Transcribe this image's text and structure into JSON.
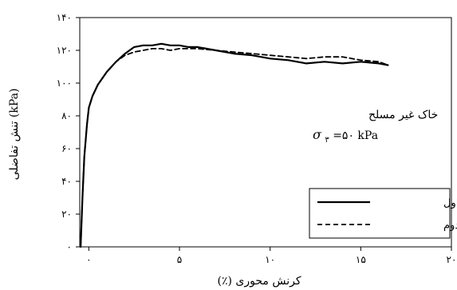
{
  "chart_data": {
    "type": "line",
    "title": "",
    "xlabel": "کرنش محوری (٪)",
    "ylabel": "تنش تفاضلی (kPa)",
    "xlim": [
      -0.5,
      20
    ],
    "ylim": [
      0,
      140
    ],
    "x_ticks": [
      0,
      5,
      10,
      15,
      20
    ],
    "x_tick_labels": [
      "۰",
      "۵",
      "۱۰",
      "۱۵",
      "۲۰"
    ],
    "y_ticks": [
      0,
      20,
      40,
      60,
      80,
      100,
      120,
      140
    ],
    "y_tick_labels": [
      "۰",
      "۲۰",
      "۴۰",
      "۶۰",
      "۸۰",
      "۱۰۰",
      "۱۲۰",
      "۱۴۰"
    ],
    "grid": false,
    "legend_position": "bottom-right",
    "annotation": {
      "line1": "خاک غیر مسلح",
      "line2_symbol": "σ",
      "line2_sub": "۳",
      "line2_rest": "=۵۰ kPa"
    },
    "series": [
      {
        "name": "آزمایش اول",
        "style": "solid",
        "color": "#000000",
        "x": [
          -0.45,
          -0.35,
          -0.25,
          -0.1,
          0,
          0.2,
          0.5,
          1,
          1.5,
          2,
          2.5,
          3,
          3.5,
          4,
          4.5,
          5,
          5.5,
          6,
          7,
          8,
          9,
          10,
          11,
          12,
          13,
          14,
          15,
          16,
          16.5
        ],
        "y": [
          0,
          30,
          55,
          75,
          85,
          92,
          99,
          107,
          113,
          118,
          122,
          123,
          123,
          124,
          123,
          123,
          122,
          122,
          120,
          118,
          117,
          115,
          114,
          112,
          113,
          112,
          113,
          112,
          111
        ]
      },
      {
        "name": "آزمایش دوم",
        "style": "dashed",
        "color": "#000000",
        "x": [
          -0.45,
          -0.35,
          -0.25,
          -0.1,
          0,
          0.2,
          0.5,
          1,
          1.5,
          2,
          2.5,
          3,
          3.5,
          4,
          4.5,
          5,
          6,
          7,
          8,
          9,
          10,
          11,
          12,
          13,
          14,
          15,
          16,
          16.5
        ],
        "y": [
          0,
          30,
          55,
          75,
          85,
          92,
          99,
          107,
          113,
          117,
          119,
          120,
          121,
          121,
          120,
          121,
          121,
          120,
          119,
          118,
          117,
          116,
          115,
          116,
          116,
          114,
          113,
          111
        ]
      }
    ]
  }
}
